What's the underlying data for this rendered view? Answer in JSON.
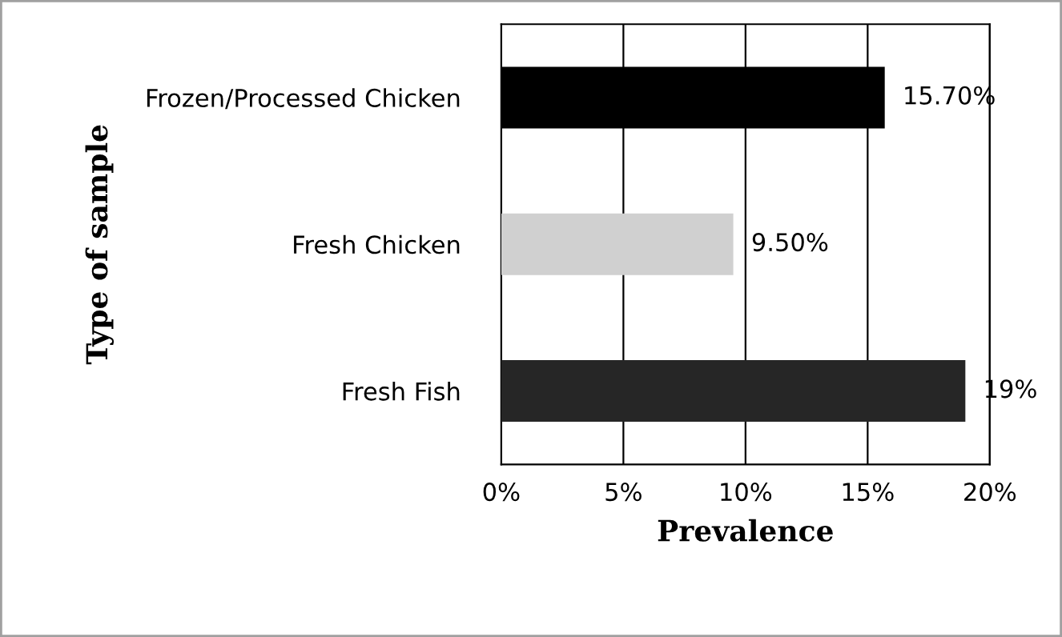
{
  "chart_data": {
    "type": "bar",
    "orientation": "horizontal",
    "xlabel": "Prevalence",
    "ylabel": "Type of sample",
    "categories": [
      "Frozen/Processed Chicken",
      "Fresh Chicken",
      "Fresh Fish"
    ],
    "values": [
      15.7,
      9.5,
      19
    ],
    "colors": [
      "#000000",
      "#d0d0d0",
      "#262626"
    ],
    "value_labels": [
      "15.70%",
      "9.50%",
      "19%"
    ],
    "xlim": [
      0,
      20
    ],
    "xticks": [
      {
        "value": 0,
        "label": "0%"
      },
      {
        "value": 5,
        "label": "5%"
      },
      {
        "value": 10,
        "label": "10%"
      },
      {
        "value": 15,
        "label": "15%"
      },
      {
        "value": 20,
        "label": "20%"
      }
    ],
    "grid": "x",
    "legend": false
  }
}
